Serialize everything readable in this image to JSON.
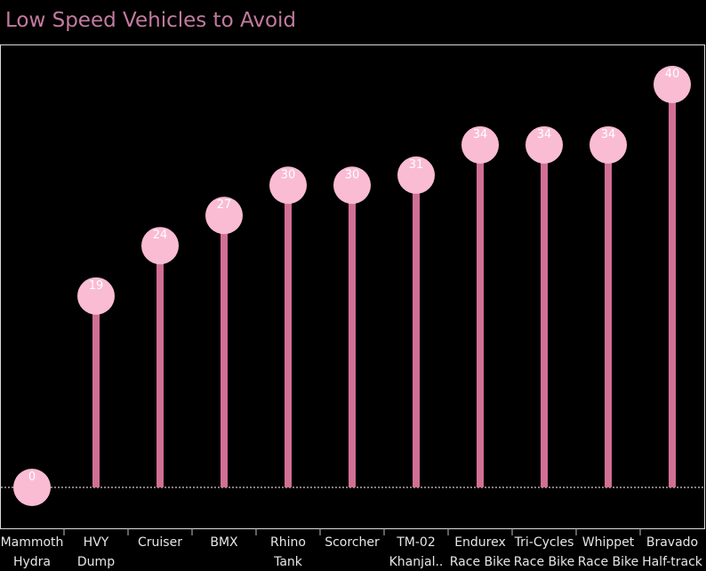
{
  "title": "Low Speed Vehicles to Avoid",
  "colors": {
    "background": "#000000",
    "title": "#c27ba0",
    "stem": "#d16f94",
    "head": "#f9bcd3",
    "baseline": "#ffffff",
    "frame": "#d9d9d9"
  },
  "chart_data": {
    "type": "lollipop",
    "title": "Low Speed Vehicles to Avoid",
    "xlabel": "",
    "ylabel": "",
    "ylim": [
      0,
      40
    ],
    "grid": false,
    "categories": [
      [
        "Mammoth",
        "Hydra"
      ],
      [
        "HVY",
        "Dump"
      ],
      [
        "Cruiser"
      ],
      [
        "BMX"
      ],
      [
        "Rhino",
        "Tank"
      ],
      [
        "Scorcher"
      ],
      [
        "TM-02",
        "Khanjal.."
      ],
      [
        "Endurex",
        "Race Bike"
      ],
      [
        "Tri-Cycles",
        "Race Bike"
      ],
      [
        "Whippet",
        "Race Bike"
      ],
      [
        "Bravado",
        "Half-track"
      ]
    ],
    "values": [
      0,
      19,
      24,
      27,
      30,
      30,
      31,
      34,
      34,
      34,
      40
    ]
  }
}
